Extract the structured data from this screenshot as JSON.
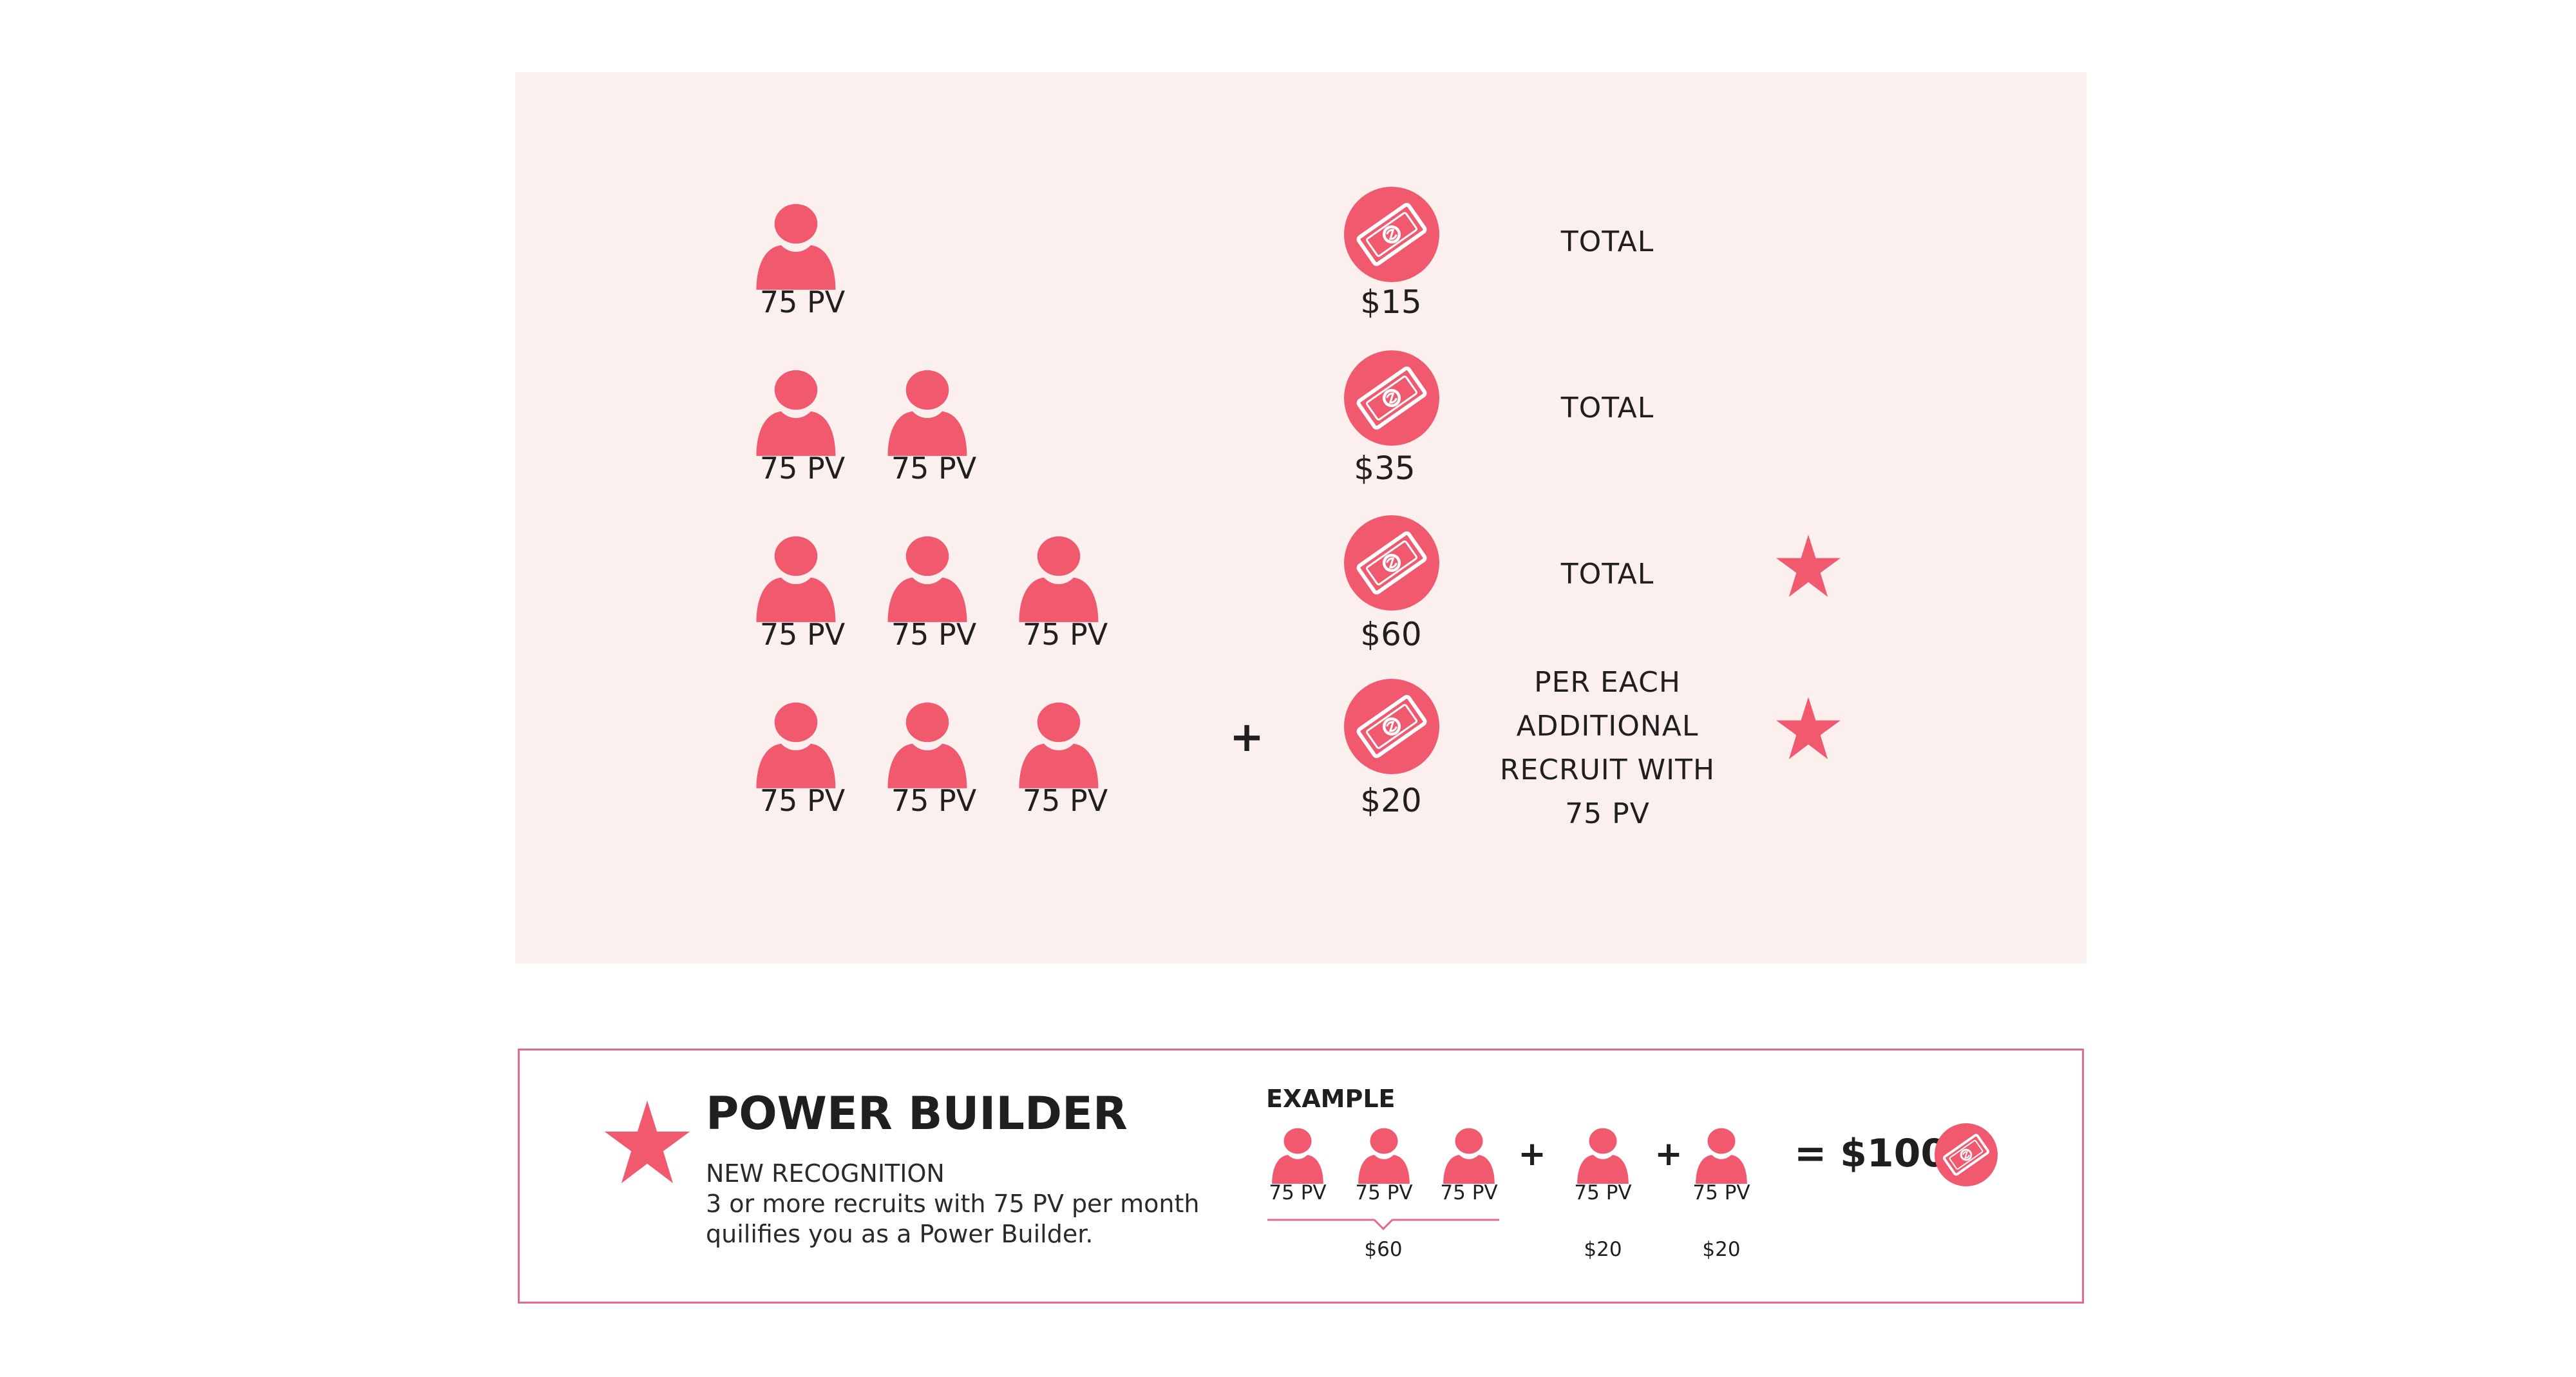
{
  "colors": {
    "accent": "#f0596e",
    "panel": "#fcf0ef",
    "border": "#e36c86"
  },
  "icons": {
    "recruit": "person-icon",
    "reward": "money-bill-icon",
    "badge": "star-icon"
  },
  "tiers": [
    {
      "pv": [
        "75 PV"
      ],
      "amount": "$15",
      "desc": "TOTAL"
    },
    {
      "pv": [
        "75 PV",
        "75 PV"
      ],
      "amount": "$35",
      "desc": "TOTAL"
    },
    {
      "pv": [
        "75 PV",
        "75 PV",
        "75 PV"
      ],
      "amount": "$60",
      "desc": "TOTAL"
    },
    {
      "pv": [
        "75 PV",
        "75 PV",
        "75 PV"
      ],
      "amount": "$20",
      "desc_lines": [
        "PER EACH",
        "ADDITIONAL",
        "RECRUIT WITH",
        "75 PV"
      ]
    }
  ],
  "plus": "+",
  "power_builder": {
    "title": "POWER BUILDER",
    "subtitle": "NEW RECOGNITION",
    "line1": "3 or more recruits with 75 PV per month",
    "line2": "quilifies you as a Power Builder."
  },
  "example": {
    "label": "EXAMPLE",
    "group_pv": [
      "75 PV",
      "75 PV",
      "75 PV"
    ],
    "group_amount": "$60",
    "extra_pv": [
      "75 PV",
      "75 PV"
    ],
    "extra_amounts": [
      "$20",
      "$20"
    ],
    "total": "= $100"
  }
}
